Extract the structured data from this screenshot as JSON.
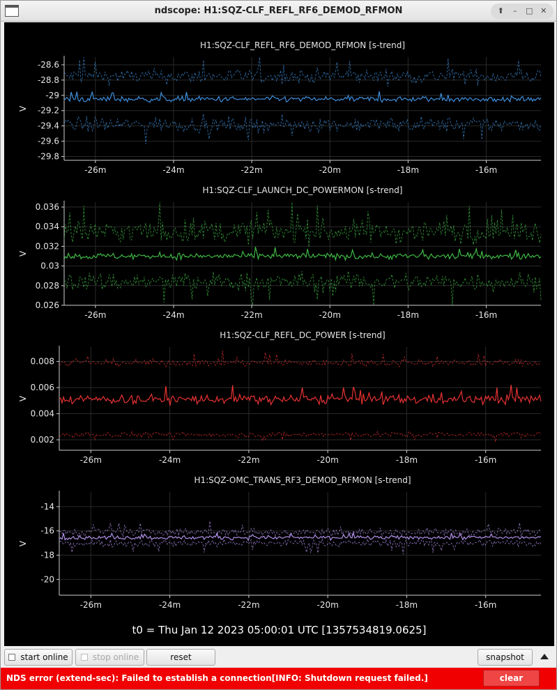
{
  "window": {
    "title": "ndscope: H1:SQZ-CLF_REFL_RF6_DEMOD_RFMON",
    "controls": [
      "minimize-up-icon",
      "minimize-icon",
      "maximize-icon",
      "close-icon"
    ]
  },
  "colors": {
    "blue": "#3f8fdc",
    "green": "#3fb845",
    "red": "#e83232",
    "purple": "#b090e8",
    "error_bg": "#f00000"
  },
  "chart_data": [
    {
      "type": "line",
      "title": "H1:SQZ-CLF_REFL_RF6_DEMOD_RFMON [s-trend]",
      "xlabel": "",
      "ylabel": "V",
      "x_range_minutes": [
        -26.8,
        -14.6
      ],
      "xticks": [
        -26,
        -24,
        -22,
        -20,
        -18,
        -16
      ],
      "xtick_labels": [
        "-26m",
        "-24m",
        "-22m",
        "-20m",
        "-18m",
        "-16m"
      ],
      "ylim": [
        -29.85,
        -28.5
      ],
      "yticks": [
        -28.6,
        -28.8,
        -29,
        -29.2,
        -29.4,
        -29.6,
        -29.8
      ],
      "ytick_labels": [
        "-28.6",
        "-28.8",
        "-29",
        "-29.2",
        "-29.4",
        "-29.6",
        "-29.8"
      ],
      "grid": true,
      "color": "#3f8fdc",
      "series": [
        {
          "role": "max",
          "style": "dashed",
          "mean": -28.75,
          "spread": 0.09
        },
        {
          "role": "mean",
          "style": "solid",
          "mean": -29.05,
          "spread": 0.035
        },
        {
          "role": "min",
          "style": "dashed",
          "mean": -29.38,
          "spread": 0.09
        }
      ]
    },
    {
      "type": "line",
      "title": "H1:SQZ-CLF_LAUNCH_DC_POWERMON [s-trend]",
      "xlabel": "",
      "ylabel": "V",
      "x_range_minutes": [
        -26.8,
        -14.6
      ],
      "xticks": [
        -26,
        -24,
        -22,
        -20,
        -18,
        -16
      ],
      "xtick_labels": [
        "-26m",
        "-24m",
        "-22m",
        "-20m",
        "-18m",
        "-16m"
      ],
      "ylim": [
        0.026,
        0.0365
      ],
      "yticks": [
        0.036,
        0.034,
        0.032,
        0.03,
        0.028,
        0.026
      ],
      "ytick_labels": [
        "0.036",
        "0.034",
        "0.032",
        "0.03",
        "0.028",
        "0.026"
      ],
      "grid": true,
      "color": "#3fb845",
      "series": [
        {
          "role": "max",
          "style": "dashed",
          "mean": 0.0335,
          "spread": 0.0011
        },
        {
          "role": "mean",
          "style": "solid",
          "mean": 0.031,
          "spread": 0.0003
        },
        {
          "role": "min",
          "style": "dashed",
          "mean": 0.0284,
          "spread": 0.0009
        }
      ]
    },
    {
      "type": "line",
      "title": "H1:SQZ-CLF_REFL_DC_POWER [s-trend]",
      "xlabel": "",
      "ylabel": "V",
      "x_range_minutes": [
        -26.8,
        -14.6
      ],
      "xticks": [
        -26,
        -24,
        -22,
        -20,
        -18,
        -16
      ],
      "xtick_labels": [
        "-26m",
        "-24m",
        "-22m",
        "-20m",
        "-18m",
        "-16m"
      ],
      "ylim": [
        0.0012,
        0.0091
      ],
      "yticks": [
        0.008,
        0.006,
        0.004,
        0.002
      ],
      "ytick_labels": [
        "0.008",
        "0.006",
        "0.004",
        "0.002"
      ],
      "grid": true,
      "color": "#e83232",
      "series": [
        {
          "role": "max",
          "style": "dashed",
          "mean": 0.0079,
          "spread": 0.00025
        },
        {
          "role": "mean",
          "style": "solid",
          "mean": 0.0051,
          "spread": 0.00035
        },
        {
          "role": "min",
          "style": "dashed",
          "mean": 0.0024,
          "spread": 0.0002
        }
      ]
    },
    {
      "type": "line",
      "title": "H1:SQZ-OMC_TRANS_RF3_DEMOD_RFMON [s-trend]",
      "xlabel": "",
      "ylabel": "V",
      "x_range_minutes": [
        -26.8,
        -14.6
      ],
      "xticks": [
        -26,
        -24,
        -22,
        -20,
        -18,
        -16
      ],
      "xtick_labels": [
        "-26m",
        "-24m",
        "-22m",
        "-20m",
        "-18m",
        "-16m"
      ],
      "ylim": [
        -21.3,
        -12.8
      ],
      "yticks": [
        -14,
        -16,
        -18,
        -20
      ],
      "ytick_labels": [
        "-14",
        "-16",
        "-18",
        "-20"
      ],
      "grid": true,
      "color": "#b090e8",
      "series": [
        {
          "role": "max",
          "style": "dashed",
          "mean": -16.1,
          "spread": 0.3
        },
        {
          "role": "mean",
          "style": "solid",
          "mean": -16.55,
          "spread": 0.15
        },
        {
          "role": "min",
          "style": "dashed",
          "mean": -17.0,
          "spread": 0.3
        }
      ]
    }
  ],
  "t0_label": "t0 = Thu Jan 12 2023 05:00:01 UTC [1357534819.0625]",
  "toolbar": {
    "start_online": "start online",
    "stop_online": "stop online",
    "reset": "reset",
    "snapshot": "snapshot"
  },
  "error": {
    "message": "NDS error (extend-sec): Failed to establish a connection[INFO: Shutdown request failed.]",
    "clear_label": "clear"
  }
}
